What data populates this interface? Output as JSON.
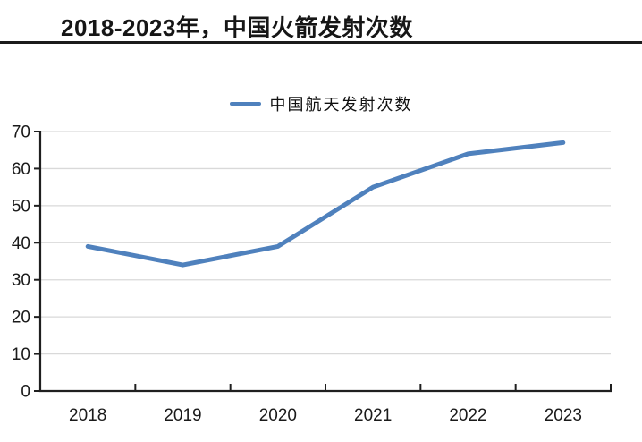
{
  "chart_data": {
    "type": "line",
    "title": "2018-2023年，中国火箭发射次数",
    "categories": [
      "2018",
      "2019",
      "2020",
      "2021",
      "2022",
      "2023"
    ],
    "series": [
      {
        "name": "中国航天发射次数",
        "values": [
          39,
          34,
          39,
          55,
          64,
          67
        ]
      }
    ],
    "xlabel": "",
    "ylabel": "",
    "ylim": [
      0,
      70
    ],
    "yticks": [
      0,
      10,
      20,
      30,
      40,
      50,
      60,
      70
    ],
    "grid": "horizontal",
    "legend_position": "top-center",
    "colors": {
      "line": "#4f81bd",
      "gridline": "#d9d9d9",
      "axis": "#1f1f1f",
      "tick_text": "#1a1a1a",
      "title_text": "#161616",
      "background": "#ffffff"
    }
  }
}
